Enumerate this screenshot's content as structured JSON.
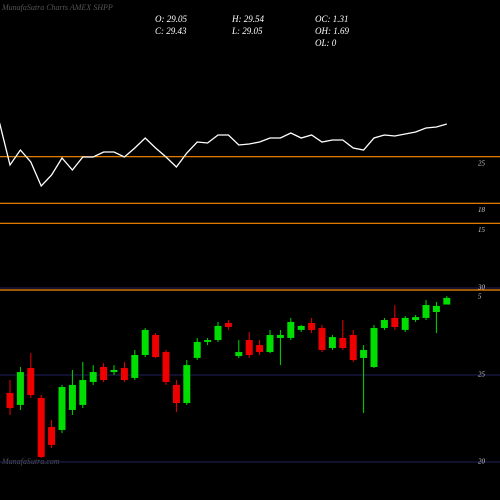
{
  "header": {
    "title": "MunafaSutra Charts AMEX SHPP",
    "stats": [
      "O: 29.05",
      "H: 29.54",
      "OC: 1.31",
      "C: 29.43",
      "L: 29.05",
      "OH: 1.69",
      "OL: 0"
    ],
    "watermark": "MunafaSutra.com"
  },
  "chart_data": [
    {
      "type": "line",
      "color": "#ffffff",
      "level_color": "#ff8c00",
      "ylim": [
        5,
        47
      ],
      "yticks": [
        5,
        15,
        18,
        25
      ],
      "values": [
        30.05,
        23.75,
        26.0,
        24.2,
        20.6,
        22.25,
        24.8,
        23.0,
        24.95,
        24.95,
        25.7,
        25.7,
        24.95,
        26.3,
        27.8,
        26.3,
        24.95,
        23.45,
        25.55,
        27.2,
        27.05,
        28.25,
        28.25,
        26.75,
        26.9,
        27.2,
        27.8,
        27.8,
        28.55,
        27.8,
        28.25,
        27.2,
        27.5,
        27.5,
        26.3,
        26.0,
        27.8,
        28.25,
        28.1,
        28.4,
        28.7,
        29.3,
        29.45,
        29.9
      ]
    },
    {
      "type": "candlestick",
      "up_color": "#00dd00",
      "down_color": "#ee0000",
      "grid_color": "#22225e",
      "ylim": [
        20,
        30
      ],
      "yticks": [
        20,
        25,
        30
      ],
      "open": [
        23.97,
        23.28,
        25.4,
        23.68,
        22.01,
        21.84,
        22.99,
        23.28,
        24.6,
        25.46,
        25.17,
        25.4,
        24.83,
        26.15,
        27.3,
        26.32,
        24.43,
        23.39,
        25.98,
        26.9,
        27.01,
        27.99,
        26.09,
        27.01,
        26.72,
        26.32,
        27.13,
        27.13,
        27.59,
        27.99,
        27.7,
        26.55,
        27.13,
        27.3,
        25.98,
        25.46,
        27.7,
        28.28,
        27.59,
        28.16,
        28.28,
        28.62,
        29.05
      ],
      "high": [
        24.71,
        25.46,
        26.26,
        23.85,
        22.41,
        24.43,
        25.29,
        25.75,
        25.57,
        25.69,
        25.57,
        25.75,
        26.44,
        27.7,
        27.41,
        26.44,
        24.71,
        25.86,
        27.13,
        27.13,
        28.05,
        28.16,
        27.01,
        27.47,
        27.01,
        27.59,
        27.59,
        28.28,
        27.87,
        28.28,
        27.87,
        27.3,
        28.16,
        27.59,
        26.72,
        27.87,
        28.28,
        29.02,
        28.39,
        28.45,
        29.31,
        29.2,
        29.54
      ],
      "low": [
        22.7,
        22.99,
        23.68,
        20.23,
        20.8,
        21.67,
        22.7,
        23.1,
        24.43,
        24.6,
        25.0,
        24.6,
        24.71,
        26.03,
        25.98,
        24.43,
        22.87,
        23.28,
        25.86,
        26.72,
        26.9,
        27.59,
        25.98,
        25.98,
        26.15,
        26.26,
        25.57,
        27.01,
        27.47,
        27.41,
        26.32,
        26.44,
        26.44,
        25.75,
        22.82,
        25.4,
        27.59,
        27.59,
        27.47,
        28.05,
        28.16,
        27.41,
        29.05
      ],
      "close": [
        23.1,
        25.17,
        23.85,
        20.29,
        20.98,
        24.31,
        24.43,
        24.71,
        25.17,
        24.71,
        25.29,
        24.71,
        26.15,
        27.59,
        26.03,
        24.6,
        23.39,
        25.57,
        26.9,
        27.01,
        27.82,
        27.76,
        26.32,
        26.15,
        26.32,
        27.3,
        27.3,
        28.05,
        27.82,
        27.59,
        26.44,
        27.18,
        26.55,
        25.86,
        26.44,
        27.7,
        28.16,
        27.76,
        28.28,
        28.33,
        29.02,
        28.97,
        29.43
      ]
    }
  ]
}
